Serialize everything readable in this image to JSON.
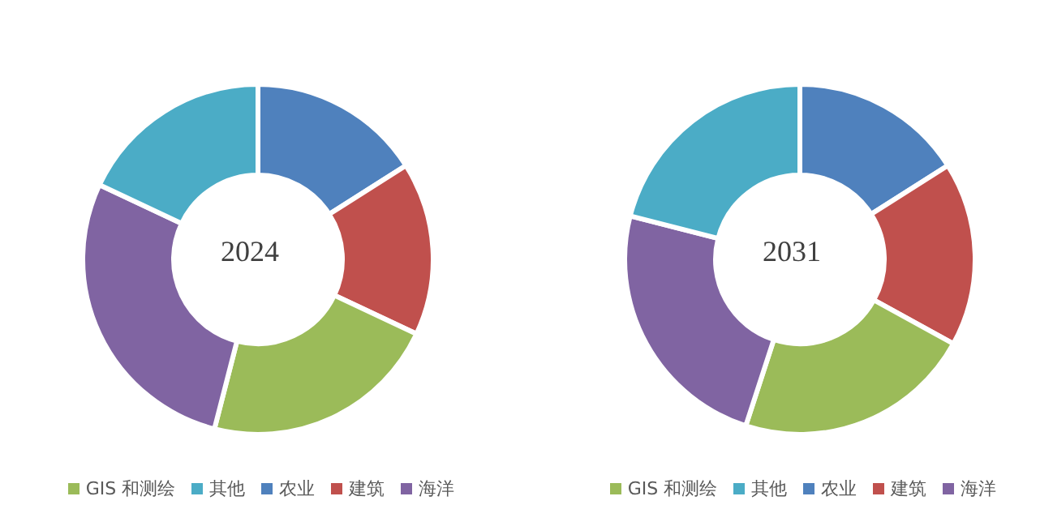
{
  "chart_data": [
    {
      "type": "donut",
      "title": "2024",
      "categories": [
        "农业",
        "建筑",
        "GIS 和测绘",
        "海洋",
        "其他"
      ],
      "values": [
        16,
        16,
        22,
        28,
        18
      ],
      "colors": [
        "#4f81bd",
        "#c0504d",
        "#9bbb59",
        "#8064a2",
        "#4bacc6"
      ],
      "legend": "bottom"
    },
    {
      "type": "donut",
      "title": "2031",
      "categories": [
        "农业",
        "建筑",
        "GIS 和测绘",
        "海洋",
        "其他"
      ],
      "values": [
        16,
        17,
        22,
        24,
        21
      ],
      "colors": [
        "#4f81bd",
        "#c0504d",
        "#9bbb59",
        "#8064a2",
        "#4bacc6"
      ],
      "legend": "bottom"
    }
  ]
}
